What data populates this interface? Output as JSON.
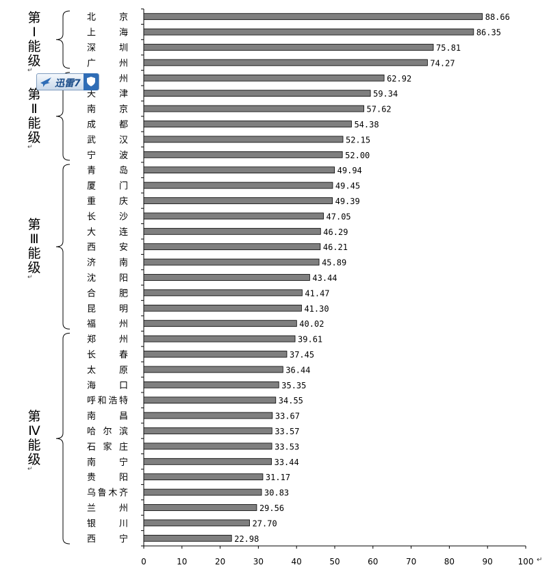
{
  "chart_data": {
    "type": "bar",
    "orientation": "horizontal",
    "categories": [
      "北京",
      "上海",
      "深圳",
      "广州",
      "杭州",
      "天津",
      "南京",
      "成都",
      "武汉",
      "宁波",
      "青岛",
      "厦门",
      "重庆",
      "长沙",
      "大连",
      "西安",
      "济南",
      "沈阳",
      "合肥",
      "昆明",
      "福州",
      "郑州",
      "长春",
      "太原",
      "海口",
      "呼和浩特",
      "南昌",
      "哈尔滨",
      "石家庄",
      "南宁",
      "贵阳",
      "乌鲁木齐",
      "兰州",
      "银川",
      "西宁"
    ],
    "category_display": [
      "北　　京",
      "上　　海",
      "深　　圳",
      "广　　州",
      "　　　州",
      "天　　津",
      "南　　京",
      "成　　都",
      "武　　汉",
      "宁　　波",
      "青　　岛",
      "厦　　门",
      "重　　庆",
      "长　　沙",
      "大　　连",
      "西　　安",
      "济　　南",
      "沈　　阳",
      "合　　肥",
      "昆　　明",
      "福　　州",
      "郑　　州",
      "长　　春",
      "太　　原",
      "海　　口",
      "呼和浩特",
      "南　　昌",
      "哈 尔 滨",
      "石 家 庄",
      "南　　宁",
      "贵　　阳",
      "乌鲁木齐",
      "兰　　州",
      "银　　川",
      "西　　宁"
    ],
    "values": [
      88.66,
      86.35,
      75.81,
      74.27,
      62.92,
      59.34,
      57.62,
      54.38,
      52.15,
      52.0,
      49.94,
      49.45,
      49.39,
      47.05,
      46.29,
      46.21,
      45.89,
      43.44,
      41.47,
      41.3,
      40.02,
      39.61,
      37.45,
      36.44,
      35.35,
      34.55,
      33.67,
      33.57,
      33.53,
      33.44,
      31.17,
      30.83,
      29.56,
      27.7,
      22.98
    ],
    "value_labels": [
      "88.66",
      "86.35",
      "75.81",
      "74.27",
      "62.92",
      "59.34",
      "57.62",
      "54.38",
      "52.15",
      "52.00",
      "49.94",
      "49.45",
      "49.39",
      "47.05",
      "46.29",
      "46.21",
      "45.89",
      "43.44",
      "41.47",
      "41.30",
      "40.02",
      "39.61",
      "37.45",
      "36.44",
      "35.35",
      "34.55",
      "33.67",
      "33.57",
      "33.53",
      "33.44",
      "31.17",
      "30.83",
      "29.56",
      "27.70",
      "22.98"
    ],
    "xlim": [
      0,
      100
    ],
    "x_ticks": [
      "0",
      "10",
      "20",
      "30",
      "40",
      "50",
      "60",
      "70",
      "80",
      "90",
      "100"
    ],
    "grid": false,
    "bar_color": "#7f7f7f",
    "bar_edge_color": "#000000",
    "tiers": [
      {
        "label_chars": [
          "第",
          "Ⅰ",
          "能",
          "级"
        ],
        "start": 0,
        "end": 3
      },
      {
        "label_chars": [
          "第",
          "Ⅱ",
          "能",
          "级"
        ],
        "start": 4,
        "end": 9
      },
      {
        "label_chars": [
          "第",
          "Ⅲ",
          "能",
          "级"
        ],
        "start": 10,
        "end": 20
      },
      {
        "label_chars": [
          "第",
          "Ⅳ",
          "能",
          "级"
        ],
        "start": 21,
        "end": 34
      }
    ]
  },
  "overlay": {
    "badge_text": "迅雷7",
    "badge_icon": "bird-icon",
    "shield_icon": "shield-icon",
    "brand_color": "#2f6db6"
  },
  "return_mark": "↵"
}
